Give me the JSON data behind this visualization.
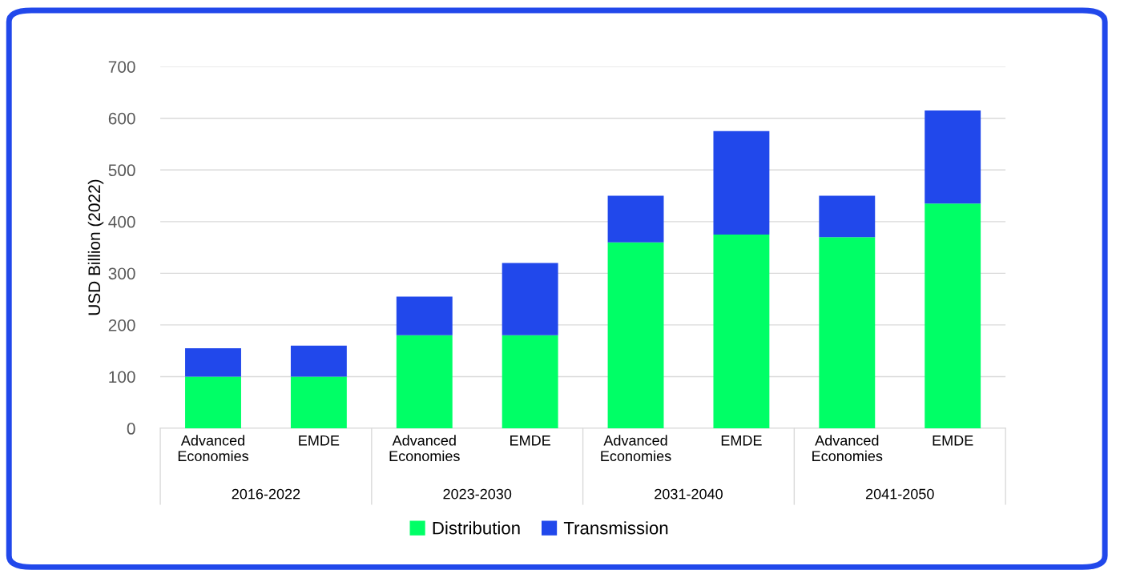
{
  "chart_data": {
    "type": "bar",
    "stacked": true,
    "ylabel": "USD Billion (2022)",
    "categories": [
      "Advanced Economies",
      "EMDE",
      "Advanced Economies",
      "EMDE",
      "Advanced Economies",
      "EMDE",
      "Advanced Economies",
      "EMDE"
    ],
    "annotations": [
      "2016-2022",
      "2023-2030",
      "2031-2040",
      "2041-2050"
    ],
    "series": [
      {
        "name": "Distribution",
        "color": "#00ff66",
        "values": [
          100,
          100,
          180,
          180,
          360,
          375,
          370,
          435
        ]
      },
      {
        "name": "Transmission",
        "color": "#2148eb",
        "values": [
          55,
          60,
          75,
          140,
          90,
          200,
          80,
          180
        ]
      }
    ],
    "ylim": [
      0,
      700
    ],
    "yticks": [
      0,
      100,
      200,
      300,
      400,
      500,
      600,
      700
    ],
    "grid": "y",
    "legend": "bottom"
  }
}
